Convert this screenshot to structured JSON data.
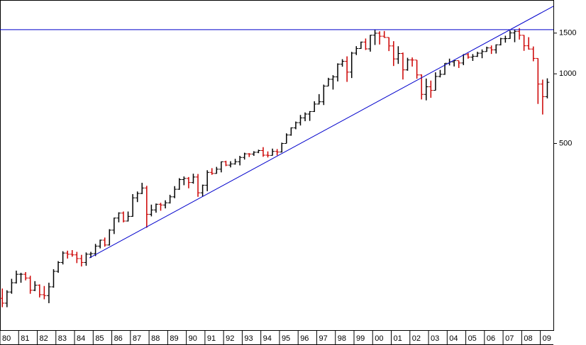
{
  "chart_data": {
    "type": "ohlc",
    "scale": "log",
    "up_color": "#000000",
    "down_color": "#cc0000",
    "line_color": "#0000cc",
    "xlim": [
      80,
      109.7
    ],
    "xticks": [
      80,
      81,
      82,
      83,
      84,
      85,
      86,
      87,
      88,
      89,
      90,
      91,
      92,
      93,
      94,
      95,
      96,
      97,
      98,
      99,
      {
        "value": 100,
        "label": "00"
      },
      {
        "value": 101,
        "label": "01"
      },
      {
        "value": 102,
        "label": "02"
      },
      {
        "value": 103,
        "label": "03"
      },
      {
        "value": 104,
        "label": "04"
      },
      {
        "value": 105,
        "label": "05"
      },
      {
        "value": 106,
        "label": "06"
      },
      {
        "value": 107,
        "label": "07"
      },
      {
        "value": 108,
        "label": "08"
      },
      {
        "value": 109,
        "label": "09"
      }
    ],
    "ylim": [
      78,
      2085
    ],
    "yticks": [
      500,
      1000,
      1500
    ],
    "x": [
      80.125,
      80.375,
      80.625,
      80.875,
      81.125,
      81.375,
      81.625,
      81.875,
      82.125,
      82.375,
      82.625,
      82.875,
      83.125,
      83.375,
      83.625,
      83.875,
      84.125,
      84.375,
      84.625,
      84.875,
      85.125,
      85.375,
      85.625,
      85.875,
      86.125,
      86.375,
      86.625,
      86.875,
      87.125,
      87.375,
      87.625,
      87.875,
      88.125,
      88.375,
      88.625,
      88.875,
      89.125,
      89.375,
      89.625,
      89.875,
      90.125,
      90.375,
      90.625,
      90.875,
      91.125,
      91.375,
      91.625,
      91.875,
      92.125,
      92.375,
      92.625,
      92.875,
      93.125,
      93.375,
      93.625,
      93.875,
      94.125,
      94.375,
      94.625,
      94.875,
      95.125,
      95.375,
      95.625,
      95.875,
      96.125,
      96.375,
      96.625,
      96.875,
      97.125,
      97.375,
      97.625,
      97.875,
      98.125,
      98.375,
      98.625,
      98.875,
      99.125,
      99.375,
      99.625,
      99.875,
      100.125,
      100.375,
      100.625,
      100.875,
      101.125,
      101.375,
      101.625,
      101.875,
      102.125,
      102.375,
      102.625,
      102.875,
      103.125,
      103.375,
      103.625,
      103.875,
      104.125,
      104.375,
      104.625,
      104.875,
      105.125,
      105.375,
      105.625,
      105.875,
      106.125,
      106.375,
      106.625,
      106.875,
      107.125,
      107.375,
      107.625,
      107.875,
      108.125,
      108.375,
      108.625,
      108.875,
      109.125,
      109.375
    ],
    "open": [
      107,
      102,
      114,
      125,
      136,
      136,
      131,
      116,
      122,
      111,
      110,
      120,
      140,
      153,
      168,
      166,
      165,
      159,
      153,
      166,
      167,
      180,
      191,
      182,
      211,
      238,
      250,
      231,
      242,
      291,
      304,
      321,
      247,
      258,
      273,
      271,
      277,
      294,
      317,
      349,
      353,
      339,
      358,
      306,
      330,
      375,
      371,
      387,
      417,
      403,
      408,
      417,
      435,
      451,
      450,
      458,
      466,
      445,
      444,
      462,
      459,
      500,
      544,
      584,
      615,
      645,
      670,
      687,
      740,
      757,
      885,
      947,
      970,
      1101,
      1133,
      1017,
      1229,
      1286,
      1372,
      1282,
      1469,
      1498,
      1454,
      1436,
      1320,
      1160,
      1224,
      1040,
      1148,
      1147,
      989,
      815,
      879,
      848,
      974,
      995,
      1111,
      1126,
      1140,
      1114,
      1211,
      1180,
      1191,
      1228,
      1248,
      1294,
      1270,
      1335,
      1418,
      1420,
      1503,
      1526,
      1468,
      1322,
      1280,
      1166,
      903,
      797
    ],
    "high": [
      118,
      116,
      130,
      141,
      138,
      139,
      134,
      127,
      123,
      121,
      125,
      143,
      155,
      171,
      172,
      173,
      170,
      165,
      169,
      170,
      184,
      192,
      196,
      213,
      239,
      252,
      254,
      254,
      302,
      310,
      338,
      328,
      272,
      275,
      277,
      284,
      300,
      327,
      354,
      360,
      358,
      370,
      369,
      332,
      383,
      391,
      396,
      418,
      421,
      419,
      429,
      442,
      456,
      454,
      463,
      470,
      482,
      462,
      475,
      473,
      504,
      553,
      587,
      622,
      664,
      681,
      690,
      761,
      817,
      898,
      961,
      987,
      1110,
      1157,
      1190,
      1244,
      1317,
      1378,
      1421,
      1474,
      1553,
      1527,
      1531,
      1437,
      1384,
      1316,
      1236,
      1173,
      1177,
      1147,
      994,
      954,
      935,
      1015,
      1040,
      1112,
      1163,
      1150,
      1141,
      1217,
      1229,
      1217,
      1245,
      1275,
      1310,
      1326,
      1340,
      1431,
      1461,
      1540,
      1555,
      1576,
      1471,
      1440,
      1313,
      1167,
      944,
      956
    ],
    "low": [
      98,
      98,
      112,
      124,
      125,
      128,
      112,
      115,
      108,
      106,
      102,
      119,
      138,
      150,
      159,
      162,
      152,
      147,
      148,
      160,
      163,
      176,
      179,
      181,
      203,
      228,
      228,
      230,
      241,
      279,
      302,
      216,
      242,
      251,
      256,
      262,
      275,
      290,
      315,
      330,
      320,
      335,
      294,
      295,
      311,
      366,
      370,
      375,
      399,
      394,
      405,
      402,
      426,
      437,
      442,
      454,
      438,
      435,
      443,
      444,
      457,
      500,
      540,
      576,
      598,
      624,
      626,
      684,
      737,
      733,
      884,
      855,
      927,
      1074,
      923,
      959,
      1205,
      1282,
      1268,
      1247,
      1333,
      1339,
      1430,
      1254,
      1081,
      1104,
      945,
      1031,
      1075,
      953,
      775,
      768,
      788,
      847,
      965,
      990,
      1087,
      1076,
      1060,
      1090,
      1163,
      1137,
      1183,
      1168,
      1245,
      1219,
      1224,
      1327,
      1364,
      1416,
      1370,
      1406,
      1257,
      1272,
      1133,
      741,
      667,
      783
    ],
    "close": [
      102,
      114,
      125,
      136,
      136,
      131,
      116,
      122,
      111,
      110,
      120,
      140,
      153,
      168,
      166,
      165,
      159,
      153,
      166,
      167,
      180,
      191,
      182,
      211,
      238,
      250,
      231,
      242,
      291,
      304,
      321,
      247,
      258,
      273,
      271,
      277,
      294,
      317,
      349,
      353,
      339,
      358,
      306,
      330,
      375,
      371,
      387,
      417,
      403,
      408,
      417,
      435,
      451,
      450,
      458,
      466,
      445,
      444,
      462,
      459,
      500,
      544,
      584,
      615,
      645,
      670,
      687,
      740,
      757,
      885,
      947,
      970,
      1101,
      1133,
      1017,
      1229,
      1286,
      1372,
      1282,
      1469,
      1498,
      1454,
      1436,
      1320,
      1160,
      1224,
      1040,
      1148,
      1147,
      989,
      815,
      879,
      848,
      974,
      995,
      1111,
      1126,
      1140,
      1114,
      1211,
      1180,
      1191,
      1228,
      1248,
      1294,
      1270,
      1335,
      1418,
      1420,
      1503,
      1526,
      1468,
      1322,
      1280,
      1166,
      903,
      797,
      919
    ],
    "lines": [
      {
        "x": [
          84.8,
          109.7
        ],
        "y": [
          160,
          1960
        ]
      },
      {
        "x": [
          80,
          109.7
        ],
        "y": [
          1552,
          1552
        ]
      }
    ]
  }
}
